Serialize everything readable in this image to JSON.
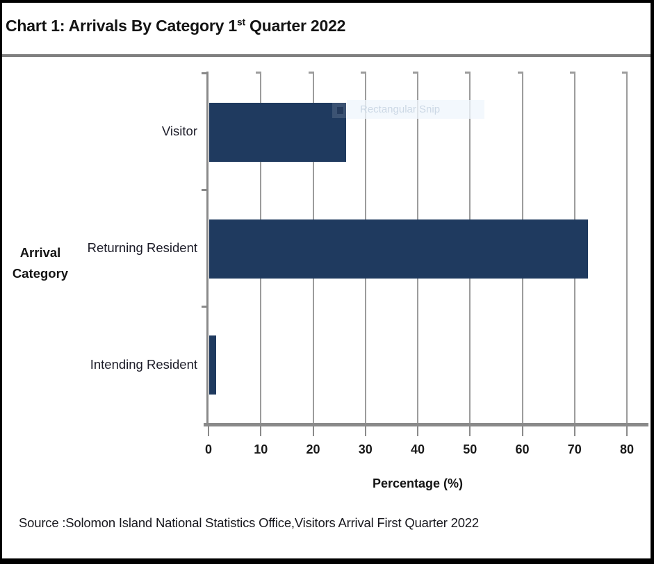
{
  "header": {
    "title_before": "Chart 1: Arrivals By Category 1",
    "title_sup": "st",
    "title_after": " Quarter 2022"
  },
  "chart_data": {
    "type": "bar",
    "orientation": "horizontal",
    "title": "Chart 1: Arrivals By Category 1st Quarter 2022",
    "categories": [
      "Visitor",
      "Returning Resident",
      "Intending Resident"
    ],
    "values": [
      26.3,
      72.5,
      1.5
    ],
    "xlabel": "Percentage (%)",
    "ylabel": "Arrival Category",
    "ylabel_lines": [
      "Arrival",
      "Category"
    ],
    "x_ticks": [
      0,
      10,
      20,
      30,
      40,
      50,
      60,
      70,
      80
    ],
    "xlim": [
      0,
      80
    ],
    "grid": true,
    "legend": "none",
    "bar_color": "#1f3a5f",
    "grid_color": "#9c9c9c"
  },
  "overlay": {
    "snip_label": "Rectangular Snip"
  },
  "footer": {
    "source": "Source :Solomon Island National Statistics Office,Visitors Arrival First Quarter 2022"
  }
}
